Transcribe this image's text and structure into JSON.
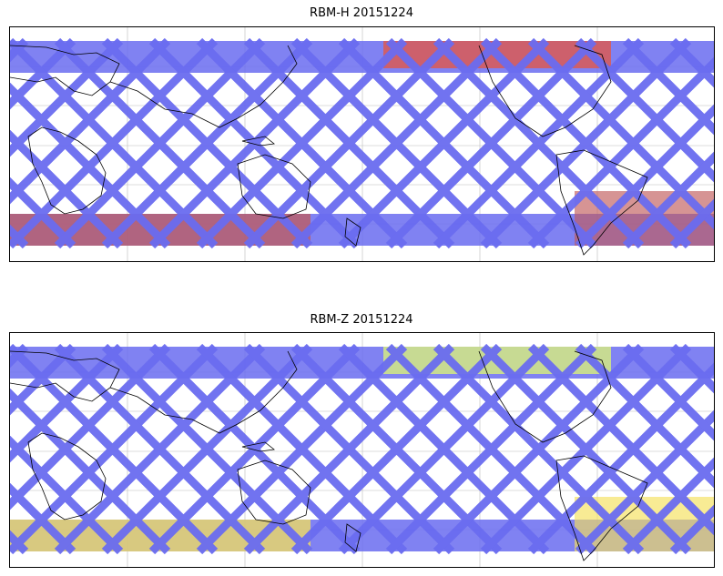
{
  "maps": [
    {
      "title": "RBM-H 20151224",
      "swath_color": "#6a6cf0",
      "highlights": [
        {
          "zone": "north-pacific",
          "color": "#e0584a"
        },
        {
          "zone": "south-band",
          "color": "#c05a5a"
        }
      ]
    },
    {
      "title": "RBM-Z 20151224",
      "swath_color": "#6a6cf0",
      "highlights": [
        {
          "zone": "north-pacific",
          "color": "#d8f07a"
        },
        {
          "zone": "south-band",
          "color": "#f5e05a"
        }
      ]
    }
  ]
}
